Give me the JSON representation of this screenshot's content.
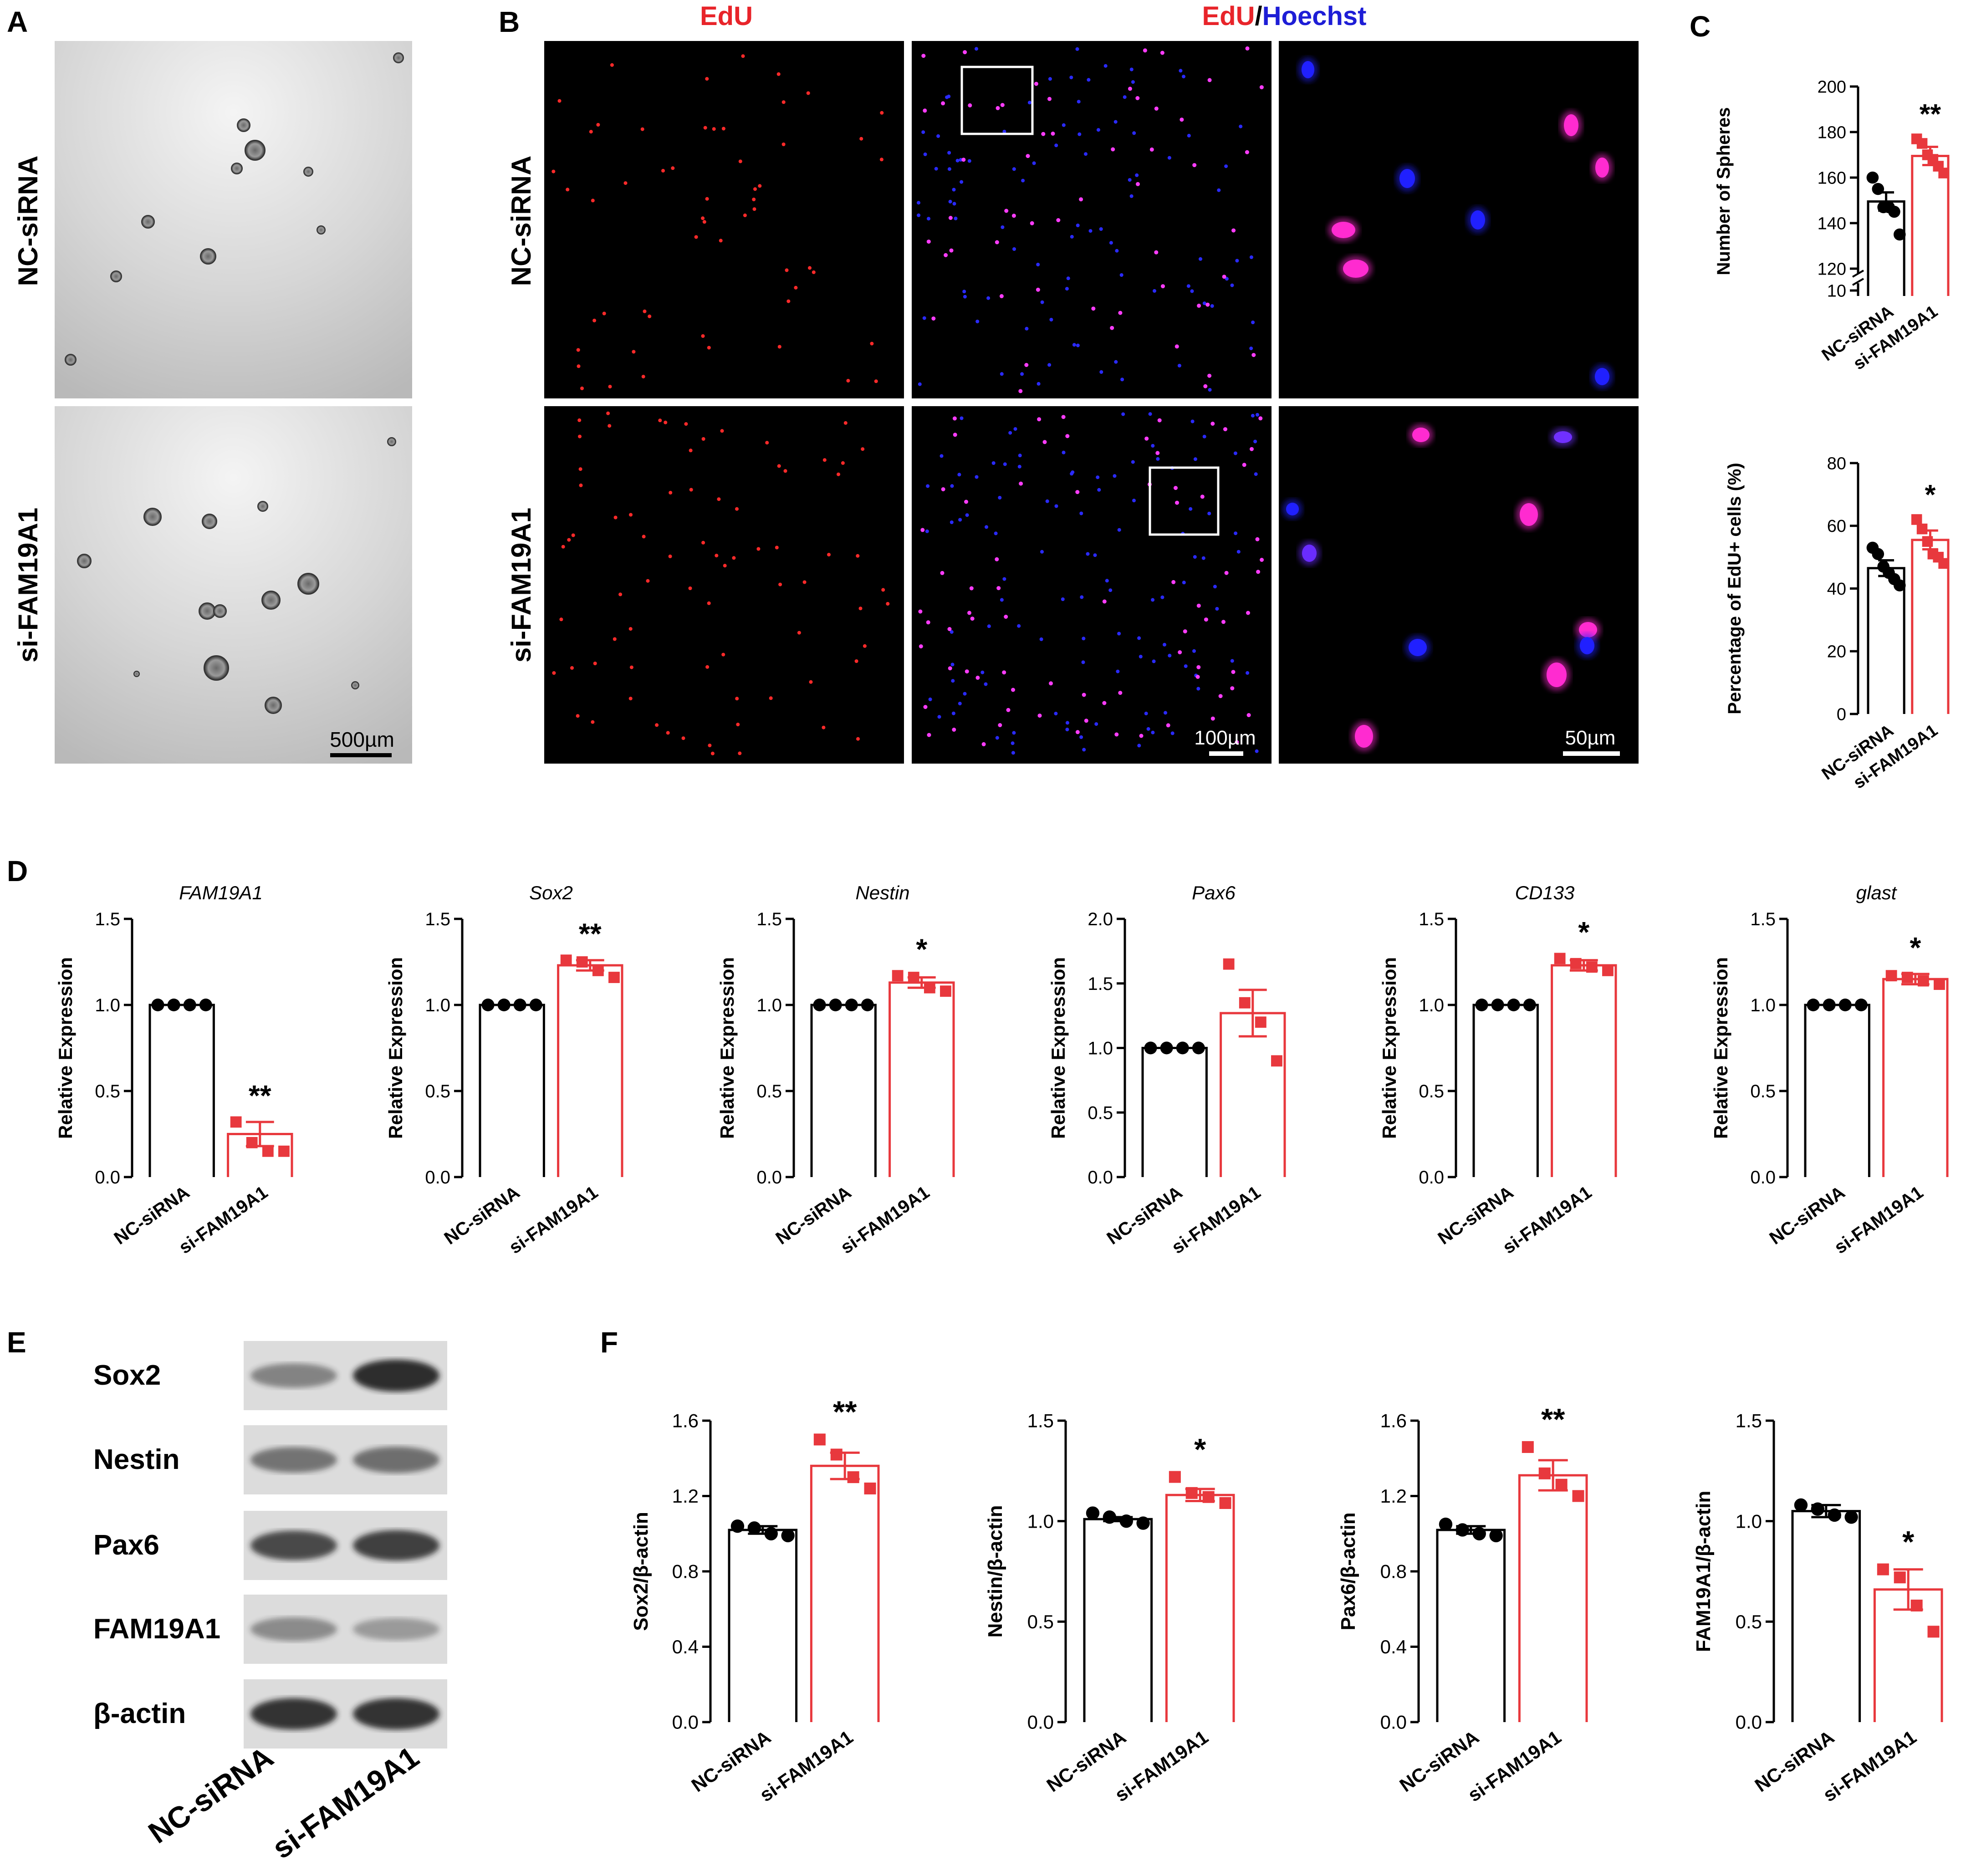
{
  "figure": {
    "panel_letters": [
      "A",
      "B",
      "C",
      "D",
      "E",
      "F"
    ],
    "groups": [
      "NC-siRNA",
      "si-FAM19A1"
    ],
    "group_colors": {
      "control": "#000000",
      "knockdown": "#e8383d"
    },
    "panel_a": {
      "scale_bar": "500µm"
    },
    "panel_b": {
      "col_title_1": "EdU",
      "col_title_2_red": "EdU",
      "col_title_2_slash": "/",
      "col_title_2_blue": "Hoechst",
      "scale_bar_mid": "100µm",
      "scale_bar_zoom": "50µm",
      "colors": {
        "edu": "#ff2a2a",
        "hoechst": "#2a2aff",
        "merge": "#ff3cff",
        "title_red": "#e8242a",
        "title_blue": "#1d1dd6"
      }
    },
    "panel_e": {
      "bands": [
        "Sox2",
        "Nestin",
        "Pax6",
        "FAM19A1",
        "β-actin"
      ],
      "lanes": [
        "NC-siRNA",
        "si-FAM19A1"
      ]
    }
  },
  "chart_data": [
    {
      "id": "C1",
      "type": "bar",
      "title": "",
      "ylabel": "Number of Spheres",
      "axis_break": true,
      "yticks": [
        10,
        120,
        140,
        160,
        180,
        200
      ],
      "ylim": [
        120,
        200
      ],
      "categories": [
        "NC-siRNA",
        "si-FAM19A1"
      ],
      "values": [
        149.5,
        169.5
      ],
      "sem": [
        4,
        4
      ],
      "points": [
        [
          160,
          155,
          147,
          147,
          145,
          135
        ],
        [
          177,
          175,
          170,
          168,
          165,
          162
        ]
      ],
      "significance": "**"
    },
    {
      "id": "C2",
      "type": "bar",
      "title": "",
      "ylabel": "Percentage of EdU+ cells (%)",
      "yticks": [
        0,
        20,
        40,
        60,
        80
      ],
      "ylim": [
        0,
        80
      ],
      "categories": [
        "NC-siRNA",
        "si-FAM19A1"
      ],
      "values": [
        46.5,
        55.5
      ],
      "sem": [
        2.5,
        3
      ],
      "points": [
        [
          53,
          51,
          47,
          45,
          43,
          41
        ],
        [
          62,
          59,
          55,
          51,
          50,
          48
        ]
      ],
      "significance": "*"
    },
    {
      "id": "D1",
      "type": "bar",
      "title": "FAM19A1",
      "ylabel": "Relative Expression",
      "yticks": [
        "0.0",
        "0.5",
        "1.0",
        "1.5"
      ],
      "ylim": [
        0,
        1.5
      ],
      "categories": [
        "NC-siRNA",
        "si-FAM19A1"
      ],
      "values": [
        1.0,
        0.25
      ],
      "sem": [
        0,
        0.07
      ],
      "points": [
        [
          1,
          1,
          1,
          1
        ],
        [
          0.32,
          0.2,
          0.15,
          0.15
        ]
      ],
      "significance": "**"
    },
    {
      "id": "D2",
      "type": "bar",
      "title": "Sox2",
      "ylabel": "Relative Expression",
      "yticks": [
        "0.0",
        "0.5",
        "1.0",
        "1.5"
      ],
      "ylim": [
        0,
        1.5
      ],
      "categories": [
        "NC-siRNA",
        "si-FAM19A1"
      ],
      "values": [
        1.0,
        1.23
      ],
      "sem": [
        0,
        0.03
      ],
      "points": [
        [
          1,
          1,
          1,
          1
        ],
        [
          1.26,
          1.25,
          1.2,
          1.16
        ]
      ],
      "significance": "**"
    },
    {
      "id": "D3",
      "type": "bar",
      "title": "Nestin",
      "ylabel": "Relative Expression",
      "yticks": [
        "0.0",
        "0.5",
        "1.0",
        "1.5"
      ],
      "ylim": [
        0,
        1.5
      ],
      "categories": [
        "NC-siRNA",
        "si-FAM19A1"
      ],
      "values": [
        1.0,
        1.13
      ],
      "sem": [
        0,
        0.03
      ],
      "points": [
        [
          1,
          1,
          1,
          1
        ],
        [
          1.17,
          1.16,
          1.1,
          1.08
        ]
      ],
      "significance": "*"
    },
    {
      "id": "D4",
      "type": "bar",
      "title": "Pax6",
      "ylabel": "Relative Expression",
      "yticks": [
        "0.0",
        "0.5",
        "1.0",
        "1.5",
        "2.0"
      ],
      "ylim": [
        0,
        2
      ],
      "categories": [
        "NC-siRNA",
        "si-FAM19A1"
      ],
      "values": [
        1.0,
        1.27
      ],
      "sem": [
        0,
        0.18
      ],
      "points": [
        [
          1,
          1,
          1,
          1
        ],
        [
          1.65,
          1.35,
          1.2,
          0.9
        ]
      ],
      "significance": ""
    },
    {
      "id": "D5",
      "type": "bar",
      "title": "CD133",
      "ylabel": "Relative Expression",
      "yticks": [
        "0.0",
        "0.5",
        "1.0",
        "1.5"
      ],
      "ylim": [
        0,
        1.5
      ],
      "categories": [
        "NC-siRNA",
        "si-FAM19A1"
      ],
      "values": [
        1.0,
        1.23
      ],
      "sem": [
        0,
        0.03
      ],
      "points": [
        [
          1,
          1,
          1,
          1
        ],
        [
          1.27,
          1.24,
          1.22,
          1.2
        ]
      ],
      "significance": "*"
    },
    {
      "id": "D6",
      "type": "bar",
      "title": "glast",
      "ylabel": "Relative Expression",
      "yticks": [
        "0.0",
        "0.5",
        "1.0",
        "1.5"
      ],
      "ylim": [
        0,
        1.5
      ],
      "categories": [
        "NC-siRNA",
        "si-FAM19A1"
      ],
      "values": [
        1.0,
        1.15
      ],
      "sem": [
        0,
        0.03
      ],
      "points": [
        [
          1,
          1,
          1,
          1
        ],
        [
          1.17,
          1.16,
          1.14,
          1.12
        ]
      ],
      "significance": "*"
    },
    {
      "id": "F1",
      "type": "bar",
      "title": "",
      "ylabel": "Sox2/β-actin",
      "yticks": [
        "0.0",
        "0.4",
        "0.8",
        "1.2",
        "1.6"
      ],
      "ylim": [
        0,
        1.6
      ],
      "categories": [
        "NC-siRNA",
        "si-FAM19A1"
      ],
      "values": [
        1.02,
        1.36
      ],
      "sem": [
        0.02,
        0.07
      ],
      "points": [
        [
          1.04,
          1.03,
          1.0,
          0.99
        ],
        [
          1.5,
          1.42,
          1.3,
          1.24
        ]
      ],
      "significance": "**"
    },
    {
      "id": "F2",
      "type": "bar",
      "title": "",
      "ylabel": "Nestin/β-actin",
      "yticks": [
        "0.0",
        "0.5",
        "1.0",
        "1.5"
      ],
      "ylim": [
        0,
        1.5
      ],
      "categories": [
        "NC-siRNA",
        "si-FAM19A1"
      ],
      "values": [
        1.01,
        1.13
      ],
      "sem": [
        0.01,
        0.03
      ],
      "points": [
        [
          1.04,
          1.02,
          1.0,
          0.99
        ],
        [
          1.22,
          1.14,
          1.12,
          1.09
        ]
      ],
      "significance": "*"
    },
    {
      "id": "F3",
      "type": "bar",
      "title": "",
      "ylabel": "Pax6/β-actin",
      "yticks": [
        "0.0",
        "0.4",
        "0.8",
        "1.2",
        "1.6"
      ],
      "ylim": [
        0,
        1.6
      ],
      "categories": [
        "NC-siRNA",
        "si-FAM19A1"
      ],
      "values": [
        1.02,
        1.31
      ],
      "sem": [
        0.02,
        0.08
      ],
      "points": [
        [
          1.05,
          1.02,
          1.0,
          0.99
        ],
        [
          1.46,
          1.32,
          1.26,
          1.2
        ]
      ],
      "significance": "**"
    },
    {
      "id": "F4",
      "type": "bar",
      "title": "",
      "ylabel": "FAM19A1/β-actin",
      "yticks": [
        "0.0",
        "0.5",
        "1.0",
        "1.5"
      ],
      "ylim": [
        0,
        1.5
      ],
      "categories": [
        "NC-siRNA",
        "si-FAM19A1"
      ],
      "values": [
        1.05,
        0.66
      ],
      "sem": [
        0.03,
        0.1
      ],
      "points": [
        [
          1.08,
          1.06,
          1.03,
          1.02
        ],
        [
          0.76,
          0.72,
          0.58,
          0.45
        ]
      ],
      "significance": "*"
    }
  ]
}
